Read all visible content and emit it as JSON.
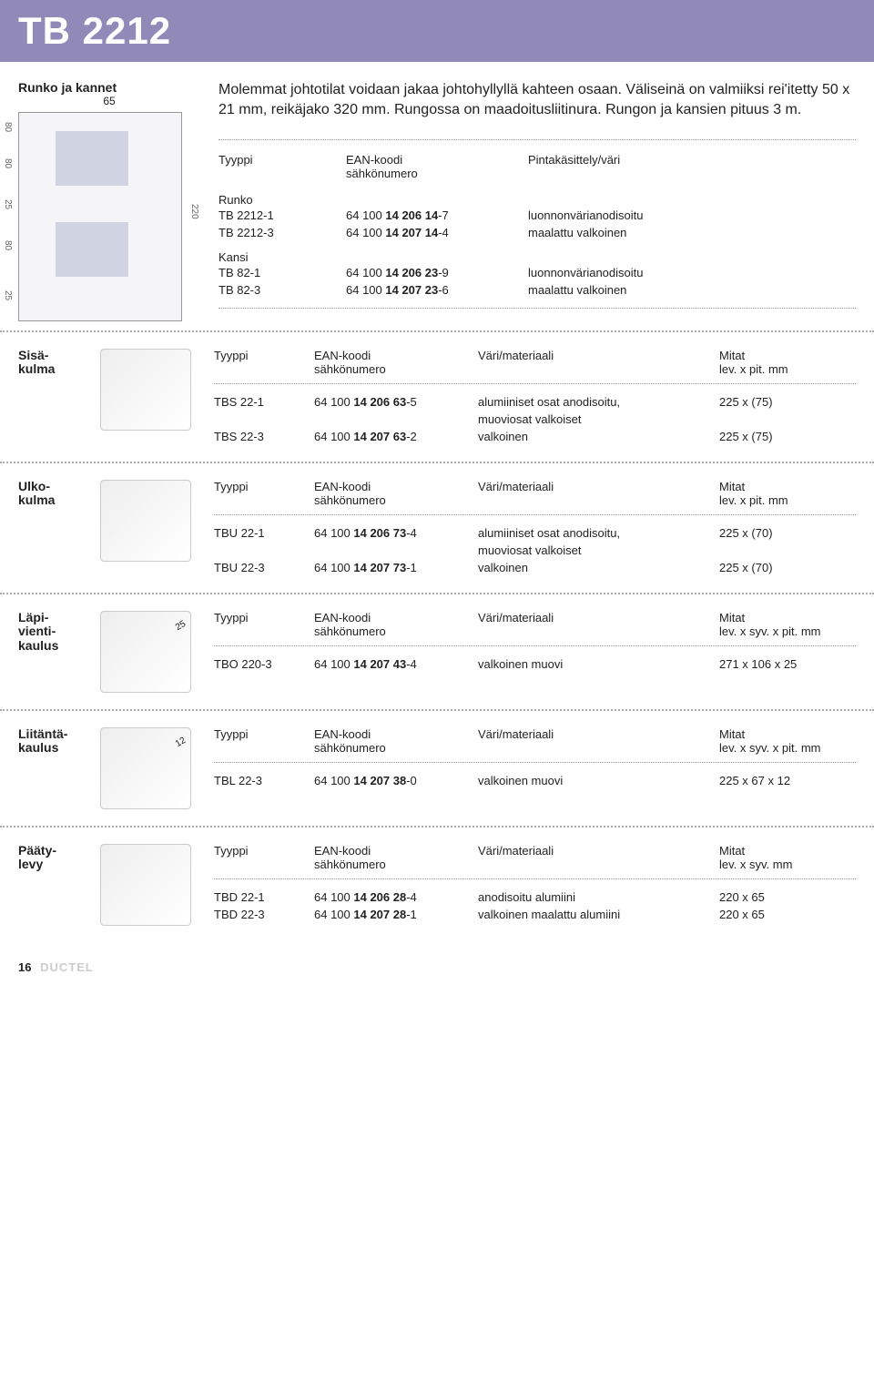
{
  "header": {
    "title": "TB 2212"
  },
  "top": {
    "diagram_label": "Runko ja kannet",
    "diagram_width": "65",
    "dims": {
      "a": "80",
      "b": "80",
      "c": "25",
      "d": "80",
      "e": "25",
      "total": "220"
    },
    "intro": "Molemmat johtotilat voidaan jakaa johtohyllyllä kahteen osaan. Väliseinä on valmiiksi rei'itetty 50 x 21 mm, reikäjako 320 mm. Rungossa on maadoitusliitinura. Rungon ja kansien pituus 3 m.",
    "headers": {
      "type": "Tyyppi",
      "ean": "EAN-koodi",
      "sahko": "sähkönumero",
      "finish": "Pintakäsittely/väri"
    },
    "group1_title": "Runko",
    "group1": [
      {
        "type": "TB 2212-1",
        "ean_a": "64 100 ",
        "ean_b": "14 206 14",
        "ean_c": "-7",
        "desc": "luonnonvärianodisoitu"
      },
      {
        "type": "TB 2212-3",
        "ean_a": "64 100 ",
        "ean_b": "14 207 14",
        "ean_c": "-4",
        "desc": "maalattu valkoinen"
      }
    ],
    "group2_title": "Kansi",
    "group2": [
      {
        "type": "TB 82-1",
        "ean_a": "64 100 ",
        "ean_b": "14 206 23",
        "ean_c": "-9",
        "desc": "luonnonvärianodisoitu"
      },
      {
        "type": "TB 82-3",
        "ean_a": "64 100 ",
        "ean_b": "14 207 23",
        "ean_c": "-6",
        "desc": "maalattu valkoinen"
      }
    ]
  },
  "sections": [
    {
      "label": "Sisä-\nkulma",
      "headers": {
        "c1": "Tyyppi",
        "c2a": "EAN-koodi",
        "c2b": "sähkönumero",
        "c3": "Väri/materiaali",
        "c4a": "Mitat",
        "c4b": "lev. x pit. mm"
      },
      "rows": [
        {
          "type": "TBS 22-1",
          "ean_a": "64 100 ",
          "ean_b": "14 206 63",
          "ean_c": "-5",
          "desc": "alumiiniset osat anodisoitu,",
          "size": "225 x (75)"
        },
        {
          "type": "",
          "ean_a": "",
          "ean_b": "",
          "ean_c": "",
          "desc": "muoviosat valkoiset",
          "size": ""
        },
        {
          "type": "TBS 22-3",
          "ean_a": "64 100 ",
          "ean_b": "14 207 63",
          "ean_c": "-2",
          "desc": "valkoinen",
          "size": "225 x (75)"
        }
      ]
    },
    {
      "label": "Ulko-\nkulma",
      "headers": {
        "c1": "Tyyppi",
        "c2a": "EAN-koodi",
        "c2b": "sähkönumero",
        "c3": "Väri/materiaali",
        "c4a": "Mitat",
        "c4b": "lev. x pit. mm"
      },
      "rows": [
        {
          "type": "TBU 22-1",
          "ean_a": "64 100 ",
          "ean_b": "14 206 73",
          "ean_c": "-4",
          "desc": "alumiiniset osat anodisoitu,",
          "size": "225 x (70)"
        },
        {
          "type": "",
          "ean_a": "",
          "ean_b": "",
          "ean_c": "",
          "desc": "muoviosat valkoiset",
          "size": ""
        },
        {
          "type": "TBU 22-3",
          "ean_a": "64 100 ",
          "ean_b": "14 207 73",
          "ean_c": "-1",
          "desc": "valkoinen",
          "size": "225 x (70)"
        }
      ]
    },
    {
      "label": "Läpi-\nvienti-\nkaulus",
      "annot": "25",
      "headers": {
        "c1": "Tyyppi",
        "c2a": "EAN-koodi",
        "c2b": "sähkönumero",
        "c3": "Väri/materiaali",
        "c4a": "Mitat",
        "c4b": "lev. x syv. x pit. mm"
      },
      "rows": [
        {
          "type": "TBO 220-3",
          "ean_a": "64 100 ",
          "ean_b": "14 207 43",
          "ean_c": "-4",
          "desc": "valkoinen muovi",
          "size": "271 x 106 x  25"
        }
      ]
    },
    {
      "label": "Liitäntä-\nkaulus",
      "annot": "12",
      "headers": {
        "c1": "Tyyppi",
        "c2a": "EAN-koodi",
        "c2b": "sähkönumero",
        "c3": "Väri/materiaali",
        "c4a": "Mitat",
        "c4b": "lev. x syv. x pit. mm"
      },
      "rows": [
        {
          "type": "TBL 22-3",
          "ean_a": "64 100 ",
          "ean_b": "14 207 38",
          "ean_c": "-0",
          "desc": "valkoinen muovi",
          "size": "225 x 67 x 12"
        }
      ]
    },
    {
      "label": "Pääty-\nlevy",
      "headers": {
        "c1": "Tyyppi",
        "c2a": "EAN-koodi",
        "c2b": "sähkönumero",
        "c3": "Väri/materiaali",
        "c4a": "Mitat",
        "c4b": "lev. x syv. mm"
      },
      "rows": [
        {
          "type": "TBD 22-1",
          "ean_a": "64 100 ",
          "ean_b": "14 206 28",
          "ean_c": "-4",
          "desc": "anodisoitu alumiini",
          "size": "220 x 65"
        },
        {
          "type": "TBD 22-3",
          "ean_a": "64 100 ",
          "ean_b": "14 207 28",
          "ean_c": "-1",
          "desc": "valkoinen maalattu alumiini",
          "size": "220 x 65"
        }
      ]
    }
  ],
  "footer": {
    "page": "16",
    "brand": "DUCTEL"
  }
}
